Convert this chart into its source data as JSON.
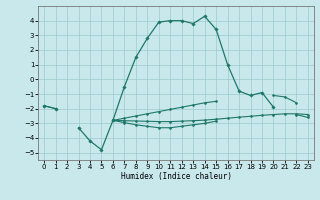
{
  "xlabel": "Humidex (Indice chaleur)",
  "x_values": [
    0,
    1,
    2,
    3,
    4,
    5,
    6,
    7,
    8,
    9,
    10,
    11,
    12,
    13,
    14,
    15,
    16,
    17,
    18,
    19,
    20,
    21,
    22,
    23
  ],
  "main_y": [
    -1.8,
    -2.0,
    null,
    -3.3,
    -4.2,
    -4.8,
    -2.8,
    -0.5,
    1.5,
    2.8,
    3.9,
    4.0,
    4.0,
    3.8,
    4.3,
    3.4,
    1.0,
    -0.8,
    -1.1,
    -0.9,
    -1.9,
    null,
    null,
    null
  ],
  "upper_band_y": [
    -1.8,
    -2.0,
    null,
    null,
    null,
    null,
    -2.8,
    -2.65,
    -2.5,
    -2.35,
    -2.2,
    -2.05,
    -1.9,
    -1.75,
    -1.6,
    -1.5,
    null,
    null,
    null,
    null,
    -1.1,
    -1.2,
    -1.6,
    null
  ],
  "lower_band_y": [
    null,
    null,
    null,
    null,
    null,
    null,
    -2.8,
    -2.95,
    -3.1,
    -3.2,
    -3.3,
    -3.3,
    -3.2,
    -3.1,
    -3.0,
    -2.85,
    null,
    null,
    null,
    null,
    null,
    null,
    -2.4,
    -2.6
  ],
  "flat_line_y": [
    null,
    null,
    null,
    null,
    null,
    null,
    -2.8,
    -2.82,
    -2.84,
    -2.86,
    -2.88,
    -2.88,
    -2.85,
    -2.82,
    -2.78,
    -2.72,
    -2.65,
    -2.58,
    -2.52,
    -2.45,
    -2.4,
    -2.35,
    -2.35,
    -2.4
  ],
  "ylim": [
    -5.5,
    5.0
  ],
  "xlim": [
    -0.5,
    23.5
  ],
  "yticks": [
    -5,
    -4,
    -3,
    -2,
    -1,
    0,
    1,
    2,
    3,
    4
  ],
  "xticks": [
    0,
    1,
    2,
    3,
    4,
    5,
    6,
    7,
    8,
    9,
    10,
    11,
    12,
    13,
    14,
    15,
    16,
    17,
    18,
    19,
    20,
    21,
    22,
    23
  ],
  "line_color": "#1e7868",
  "bg_color": "#c8e8ec",
  "grid_color": "#9ecacc"
}
